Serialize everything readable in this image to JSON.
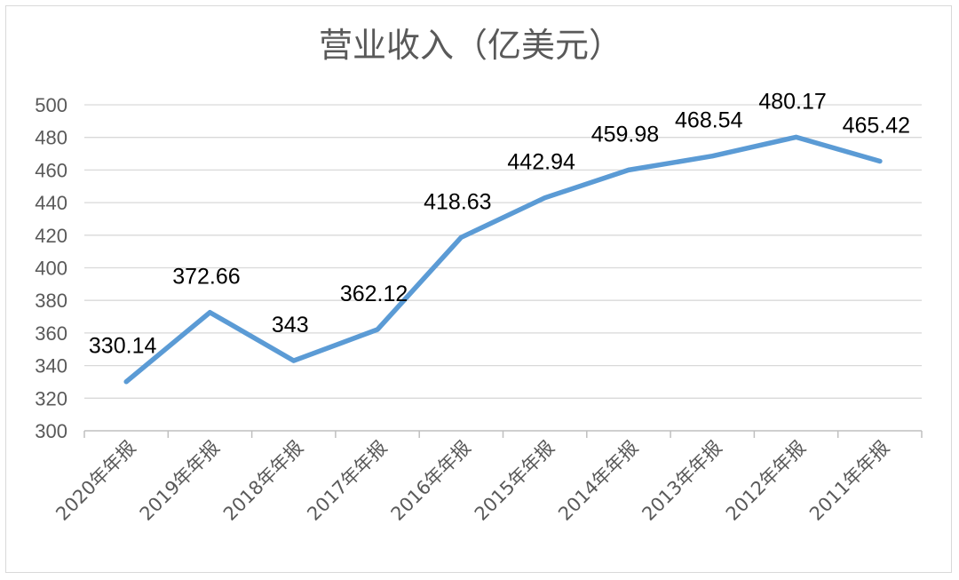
{
  "chart_data": {
    "type": "line",
    "title": "营业收入（亿美元）",
    "xlabel": "",
    "ylabel": "",
    "categories": [
      "2020年年报",
      "2019年年报",
      "2018年年报",
      "2017年年报",
      "2016年年报",
      "2015年年报",
      "2014年年报",
      "2013年年报",
      "2012年年报",
      "2011年年报"
    ],
    "series": [
      {
        "name": "",
        "values": [
          330.14,
          372.66,
          343,
          362.12,
          418.63,
          442.94,
          459.98,
          468.54,
          480.17,
          465.42
        ],
        "labels": [
          "330.14",
          "372.66",
          "343",
          "362.12",
          "418.63",
          "442.94",
          "459.98",
          "468.54",
          "480.17",
          "465.42"
        ],
        "color": "#5b9bd5"
      }
    ],
    "ylim": [
      300,
      500
    ],
    "yticks": [
      "300",
      "320",
      "340",
      "360",
      "380",
      "400",
      "420",
      "440",
      "460",
      "480",
      "500"
    ],
    "grid": true,
    "legend": "none"
  }
}
